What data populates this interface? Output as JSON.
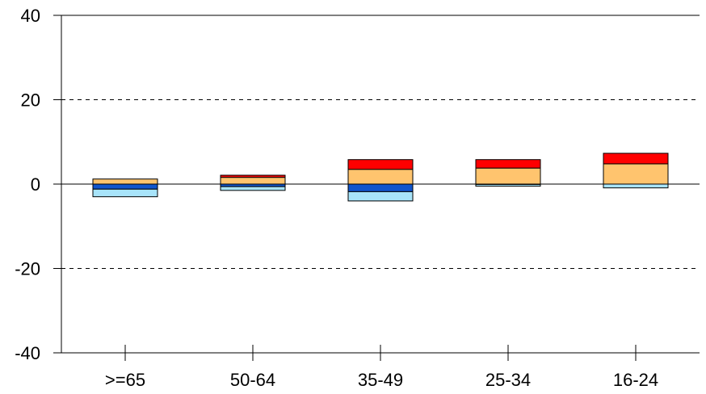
{
  "chart_data": {
    "type": "bar",
    "stacked": true,
    "categories": [
      ">=65",
      "50-64",
      "35-49",
      "25-34",
      "16-24"
    ],
    "ylim": [
      -40,
      40
    ],
    "yticks": [
      40,
      20,
      0,
      -20,
      -40
    ],
    "grid": "dashed horizontal at 20 and -20",
    "series": [
      {
        "color": "#FFC46E",
        "values": [
          1.2,
          1.6,
          3.5,
          3.8,
          4.8
        ]
      },
      {
        "color": "#FF0000",
        "values": [
          0.0,
          0.5,
          2.3,
          2.0,
          2.5
        ]
      },
      {
        "color": "#1155CC",
        "values": [
          -1.2,
          -0.6,
          -1.8,
          -0.1,
          0.0
        ]
      },
      {
        "color": "#A8E4FA",
        "values": [
          -1.8,
          -0.9,
          -2.2,
          -0.4,
          -0.9
        ]
      }
    ],
    "title": "",
    "xlabel": "",
    "ylabel": ""
  }
}
